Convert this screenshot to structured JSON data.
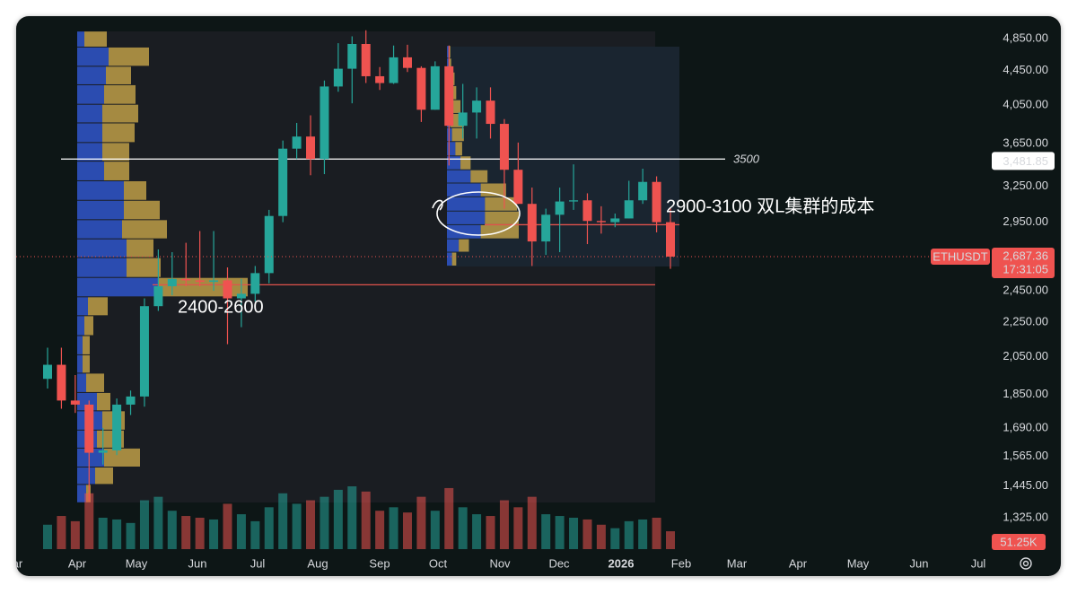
{
  "chart_data": {
    "type": "candlestick",
    "symbol": "ETHUSDT",
    "last_price": {
      "value": 2687.36,
      "label": "2,687.36"
    },
    "countdown": "17:31:05",
    "crosshair": {
      "value": 3481.85,
      "label": "3,481.85"
    },
    "log_scale": true,
    "ylim": [
      1217,
      5154
    ],
    "yticks": [
      {
        "value": 4850,
        "label": "4,850.00"
      },
      {
        "value": 4450,
        "label": "4,450.00"
      },
      {
        "value": 4050,
        "label": "4,050.00"
      },
      {
        "value": 3650,
        "label": "3,650.00"
      },
      {
        "value": 3250,
        "label": "3,250.00"
      },
      {
        "value": 2950,
        "label": "2,950.00"
      },
      {
        "value": 2450,
        "label": "2,450.00"
      },
      {
        "value": 2250,
        "label": "2,250.00"
      },
      {
        "value": 2050,
        "label": "2,050.00"
      },
      {
        "value": 1850,
        "label": "1,850.00"
      },
      {
        "value": 1690,
        "label": "1,690.00"
      },
      {
        "value": 1565,
        "label": "1,565.00"
      },
      {
        "value": 1445,
        "label": "1,445.00"
      },
      {
        "value": 1325,
        "label": "1,325.00"
      }
    ],
    "xticks": [
      "Mar",
      "Apr",
      "May",
      "Jun",
      "Jul",
      "Aug",
      "Sep",
      "Oct",
      "Nov",
      "Dec",
      "2026",
      "Feb",
      "Mar",
      "Apr",
      "May",
      "Jun",
      "Jul"
    ],
    "up_color": "#26a69a",
    "down_color": "#ef5350",
    "series": [
      {
        "name": "open",
        "values": [
          1930,
          2005,
          1820,
          1800,
          1580,
          1590,
          1800,
          1840,
          2350,
          2480,
          2530,
          2520,
          2510,
          2520,
          2400,
          2430,
          2570,
          3000,
          3600,
          3720,
          3500,
          4260,
          4470,
          4780,
          4380,
          4300,
          4610,
          4480,
          4000,
          4500,
          3830,
          3970,
          4100,
          3850,
          3400,
          3100,
          2800,
          3010,
          3120,
          3130,
          2960,
          2950,
          2980,
          3130,
          3290,
          2950
        ]
      },
      {
        "name": "high",
        "values": [
          2100,
          2100,
          1950,
          1820,
          1690,
          1830,
          1870,
          2400,
          2740,
          2720,
          2790,
          2880,
          2880,
          2610,
          2530,
          2620,
          3050,
          3680,
          3860,
          3940,
          4330,
          4790,
          4880,
          4960,
          4490,
          4760,
          4770,
          4500,
          4560,
          4760,
          4290,
          4250,
          4250,
          3900,
          3660,
          3240,
          3060,
          3240,
          3450,
          3190,
          3080,
          3020,
          3300,
          3410,
          3340,
          3070
        ]
      },
      {
        "name": "low",
        "values": [
          1880,
          1780,
          1760,
          1385,
          1530,
          1570,
          1750,
          1790,
          2320,
          2420,
          2480,
          2480,
          2450,
          2120,
          2220,
          2380,
          2500,
          2950,
          3500,
          3350,
          3360,
          4200,
          4070,
          4300,
          4220,
          4290,
          4430,
          3870,
          4000,
          3440,
          3700,
          3700,
          3700,
          3060,
          3100,
          2620,
          2700,
          2720,
          3050,
          2780,
          2860,
          2910,
          2980,
          3100,
          2870,
          2600
        ]
      },
      {
        "name": "close",
        "values": [
          2005,
          1820,
          1800,
          1580,
          1590,
          1800,
          1840,
          2350,
          2480,
          2530,
          2520,
          2510,
          2520,
          2400,
          2430,
          2570,
          3000,
          3600,
          3720,
          3500,
          4260,
          4470,
          4780,
          4380,
          4300,
          4610,
          4480,
          4000,
          4500,
          3830,
          3970,
          4100,
          3850,
          3400,
          3100,
          2800,
          3010,
          3120,
          3130,
          2960,
          2950,
          2980,
          3130,
          3290,
          2950,
          2687.36
        ]
      }
    ],
    "volume": {
      "values": [
        70,
        95,
        80,
        160,
        90,
        85,
        75,
        140,
        150,
        110,
        95,
        90,
        85,
        130,
        100,
        80,
        120,
        160,
        130,
        140,
        150,
        170,
        180,
        165,
        110,
        120,
        105,
        150,
        110,
        175,
        120,
        100,
        95,
        140,
        120,
        150,
        100,
        95,
        90,
        85,
        70,
        60,
        80,
        85,
        90,
        51.25
      ],
      "value_labels": {
        "45": "51.25K"
      },
      "color_alpha": 0.55
    },
    "levels": [
      {
        "value": 3500,
        "label": "3500",
        "color": "#ffffff"
      },
      {
        "value": 2930,
        "color": "#e0524c"
      },
      {
        "value": 2490,
        "color": "#e0524c"
      }
    ],
    "profiles": [
      {
        "edges": [
          1380,
          1450,
          1520,
          1600,
          1680,
          1770,
          1860,
          1960,
          2060,
          2170,
          2290,
          2410,
          2540,
          2680,
          2820,
          2970,
          3130,
          3300,
          3480,
          3660,
          3860,
          4060,
          4280,
          4500,
          4740,
          4950
        ],
        "buy": [
          10,
          20,
          30,
          22,
          28,
          22,
          10,
          6,
          6,
          8,
          12,
          90,
          55,
          55,
          50,
          52,
          52,
          30,
          28,
          28,
          28,
          30,
          32,
          35,
          8
        ],
        "sell": [
          5,
          20,
          40,
          30,
          25,
          15,
          20,
          8,
          8,
          10,
          22,
          100,
          38,
          30,
          50,
          40,
          25,
          28,
          30,
          36,
          40,
          35,
          28,
          45,
          25
        ]
      },
      {
        "edges": [
          2620,
          2720,
          2820,
          2930,
          3040,
          3160,
          3280,
          3400,
          3530,
          3670,
          3810,
          3960,
          4110,
          4270,
          4430,
          4600,
          4760
        ],
        "buy": [
          6,
          14,
          40,
          45,
          45,
          40,
          28,
          16,
          10,
          6,
          4,
          4,
          3,
          3,
          2,
          2
        ],
        "sell": [
          5,
          12,
          45,
          40,
          38,
          30,
          20,
          12,
          8,
          14,
          16,
          12,
          8,
          6,
          3,
          2
        ]
      }
    ],
    "profile_colors": {
      "buy": "#2f55c9",
      "sell": "#c8a64a"
    },
    "annotations": [
      "2400-2600",
      "2900-3100  双L集群的成本"
    ]
  }
}
